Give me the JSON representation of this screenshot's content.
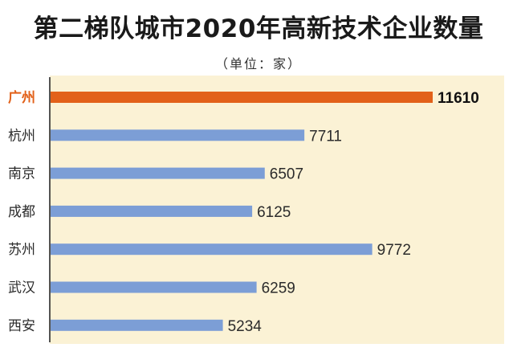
{
  "title": "第二梯队城市2020年高新技术企业数量",
  "subtitle": "（单位：家）",
  "colors": {
    "highlight_bar": "#e2611a",
    "highlight_label": "#e2611a",
    "bar": "#7c9ed6",
    "background_panel": "#fbf2d5",
    "axis": "#2a2a2a",
    "label": "#2b2b2b"
  },
  "chart_data": {
    "type": "bar",
    "orientation": "horizontal",
    "categories": [
      "广州",
      "杭州",
      "南京",
      "成都",
      "苏州",
      "武汉",
      "西安"
    ],
    "values": [
      11610,
      7711,
      6507,
      6125,
      9772,
      6259,
      5234
    ],
    "value_labels": [
      "11610",
      "7711",
      "6507",
      "6125",
      "9772",
      "6259",
      "5234"
    ],
    "highlight_index": 0,
    "title": "第二梯队城市2020年高新技术企业数量",
    "subtitle": "（单位：家）",
    "xlim": [
      0,
      11610
    ],
    "grid": false,
    "legend": "none"
  }
}
